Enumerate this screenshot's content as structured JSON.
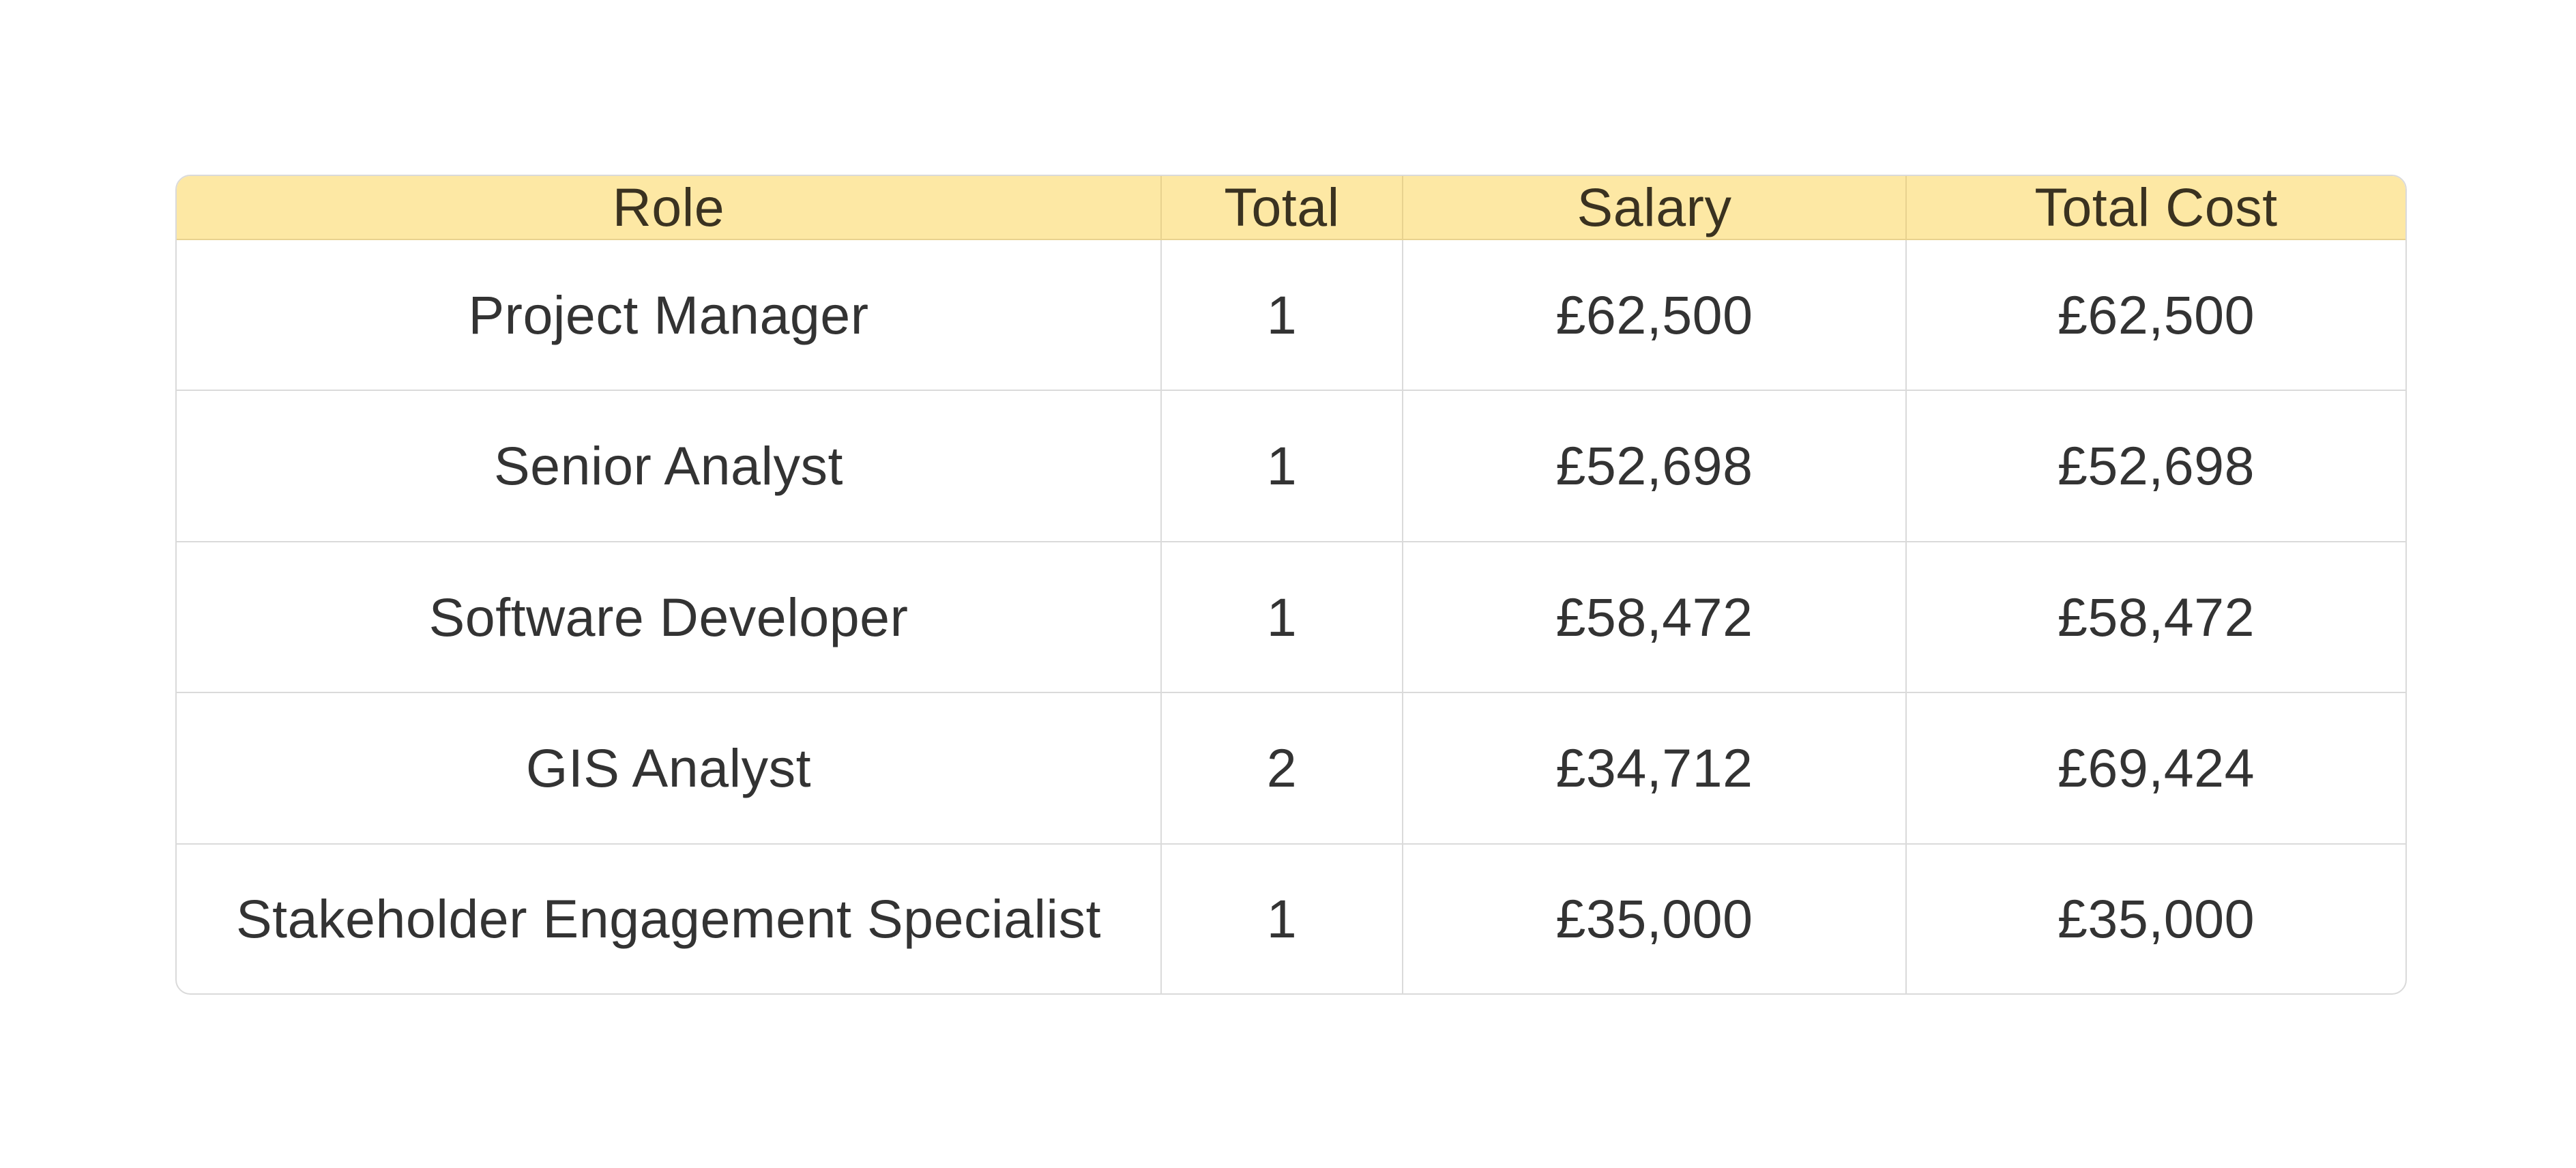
{
  "theme": {
    "header_background": "#fde8a4",
    "text_color": "#333333",
    "border_color": "#dadada"
  },
  "table": {
    "headers": [
      "Role",
      "Total",
      "Salary",
      "Total Cost"
    ],
    "rows": [
      [
        "Project Manager",
        "1",
        "£62,500",
        "£62,500"
      ],
      [
        "Senior Analyst",
        "1",
        "£52,698",
        "£52,698"
      ],
      [
        "Software Developer",
        "1",
        "£58,472",
        "£58,472"
      ],
      [
        "GIS Analyst",
        "2",
        "£34,712",
        "£69,424"
      ],
      [
        "Stakeholder Engagement Specialist",
        "1",
        "£35,000",
        "£35,000"
      ]
    ]
  }
}
